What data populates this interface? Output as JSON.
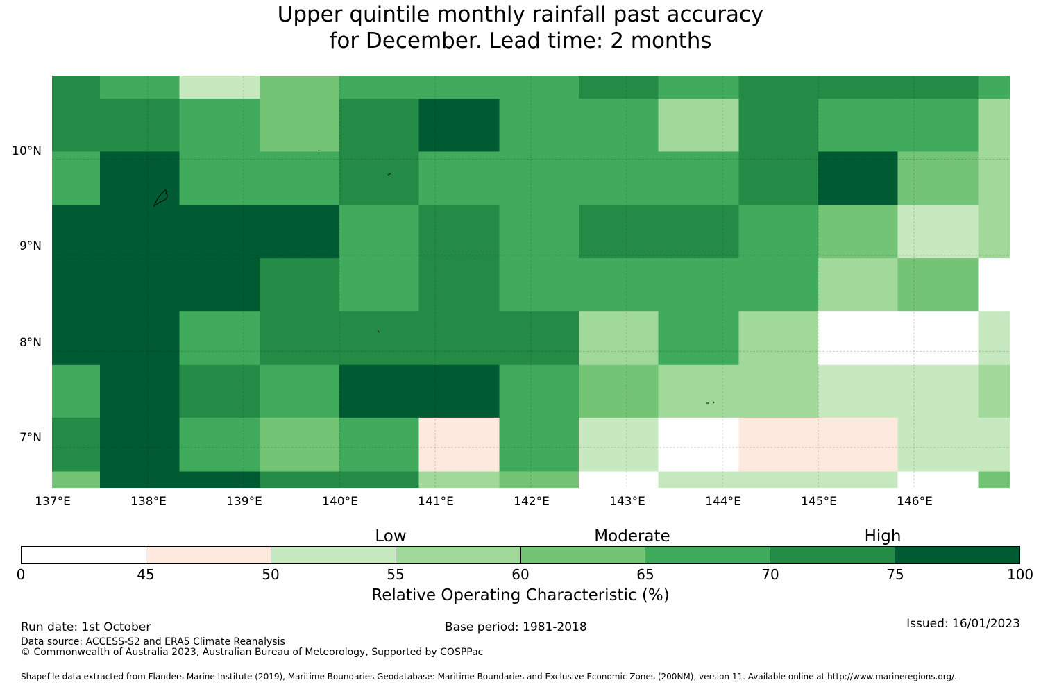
{
  "title_line1": "Upper quintile monthly rainfall past accuracy",
  "title_line2": "for December. Lead time: 2 months",
  "map": {
    "lat_labels": [
      "10°N",
      "9°N",
      "8°N",
      "7°N"
    ],
    "lon_labels": [
      "137°E",
      "138°E",
      "139°E",
      "140°E",
      "141°E",
      "142°E",
      "143°E",
      "144°E",
      "145°E",
      "146°E"
    ],
    "lon_range": [
      137.0,
      147.0
    ],
    "lat_range": [
      6.58,
      10.87
    ],
    "gridlines": true
  },
  "chart_data": {
    "type": "heatmap",
    "title": "Upper quintile monthly rainfall past accuracy for December. Lead time: 2 months",
    "value_units": "Relative Operating Characteristic (%)",
    "note": "values are colour-bin midpoints: 22.5=0-45, 47.5=45-50, 52.5=50-55, 57.5=55-60, 62.5=60-65, 67.5=65-70, 72.5=70-75, 87.5=75-100",
    "columns": [
      {
        "lon_start": 137.0,
        "lon_end": 137.5
      },
      {
        "lon_start": 137.5,
        "lon_end": 138.33
      },
      {
        "lon_start": 138.33,
        "lon_end": 139.17
      },
      {
        "lon_start": 139.17,
        "lon_end": 140.0
      },
      {
        "lon_start": 140.0,
        "lon_end": 140.83
      },
      {
        "lon_start": 140.83,
        "lon_end": 141.67
      },
      {
        "lon_start": 141.67,
        "lon_end": 142.5
      },
      {
        "lon_start": 142.5,
        "lon_end": 143.33
      },
      {
        "lon_start": 143.33,
        "lon_end": 144.17
      },
      {
        "lon_start": 144.17,
        "lon_end": 145.0
      },
      {
        "lon_start": 145.0,
        "lon_end": 145.83
      },
      {
        "lon_start": 145.83,
        "lon_end": 146.67
      },
      {
        "lon_start": 146.67,
        "lon_end": 147.0
      }
    ],
    "rows": [
      {
        "lat_top": 10.87,
        "lat_bottom": 10.63,
        "values": [
          72.5,
          67.5,
          52.5,
          62.5,
          67.5,
          67.5,
          67.5,
          72.5,
          67.5,
          72.5,
          72.5,
          72.5,
          67.5
        ]
      },
      {
        "lat_top": 10.63,
        "lat_bottom": 10.08,
        "values": [
          72.5,
          72.5,
          67.5,
          62.5,
          72.5,
          87.5,
          67.5,
          67.5,
          57.5,
          72.5,
          67.5,
          67.5,
          57.5
        ]
      },
      {
        "lat_top": 10.08,
        "lat_bottom": 9.52,
        "values": [
          67.5,
          87.5,
          67.5,
          67.5,
          72.5,
          67.5,
          67.5,
          67.5,
          67.5,
          72.5,
          87.5,
          62.5,
          57.5
        ]
      },
      {
        "lat_top": 9.52,
        "lat_bottom": 8.97,
        "values": [
          87.5,
          87.5,
          87.5,
          87.5,
          67.5,
          72.5,
          67.5,
          72.5,
          72.5,
          67.5,
          62.5,
          52.5,
          57.5
        ]
      },
      {
        "lat_top": 8.97,
        "lat_bottom": 8.42,
        "values": [
          87.5,
          87.5,
          87.5,
          72.5,
          67.5,
          72.5,
          67.5,
          67.5,
          67.5,
          67.5,
          57.5,
          62.5,
          22.5
        ]
      },
      {
        "lat_top": 8.42,
        "lat_bottom": 7.86,
        "values": [
          87.5,
          87.5,
          67.5,
          72.5,
          72.5,
          72.5,
          72.5,
          57.5,
          67.5,
          57.5,
          22.5,
          22.5,
          52.5
        ]
      },
      {
        "lat_top": 7.86,
        "lat_bottom": 7.31,
        "values": [
          67.5,
          87.5,
          72.5,
          67.5,
          87.5,
          87.5,
          67.5,
          62.5,
          57.5,
          57.5,
          52.5,
          52.5,
          57.5
        ]
      },
      {
        "lat_top": 7.31,
        "lat_bottom": 6.75,
        "values": [
          72.5,
          87.5,
          67.5,
          62.5,
          67.5,
          47.5,
          67.5,
          52.5,
          22.5,
          47.5,
          47.5,
          52.5,
          52.5
        ]
      },
      {
        "lat_top": 6.75,
        "lat_bottom": 6.58,
        "values": [
          62.5,
          87.5,
          87.5,
          72.5,
          72.5,
          57.5,
          62.5,
          22.5,
          52.5,
          52.5,
          52.5,
          22.5,
          62.5
        ]
      }
    ]
  },
  "colorbar": {
    "categories": [
      "Low",
      "Moderate",
      "High"
    ],
    "ticks": [
      "0",
      "45",
      "50",
      "55",
      "60",
      "65",
      "70",
      "75",
      "100"
    ],
    "colors": [
      "#ffffff",
      "#fee9df",
      "#c7e9c0",
      "#a1d99b",
      "#74c476",
      "#41ab5d",
      "#238b45",
      "#005a32"
    ],
    "label": "Relative Operating Characteristic (%)"
  },
  "footer": {
    "run_date": "Run date: 1st October",
    "base_period": "Base period: 1981-2018",
    "issued": "Issued: 16/01/2023",
    "data_source": "Data source: ACCESS-S2 and ERA5 Climate Reanalysis",
    "copyright": "© Commonwealth of Australia 2023, Australian Bureau of Meteorology, Supported by COSPPac",
    "shapefile": "Shapefile data extracted from Flanders Marine Institute (2019), Maritime Boundaries Geodatabase: Maritime Boundaries and Exclusive Economic Zones (200NM), version 11. Available online at http://www.marineregions.org/."
  }
}
